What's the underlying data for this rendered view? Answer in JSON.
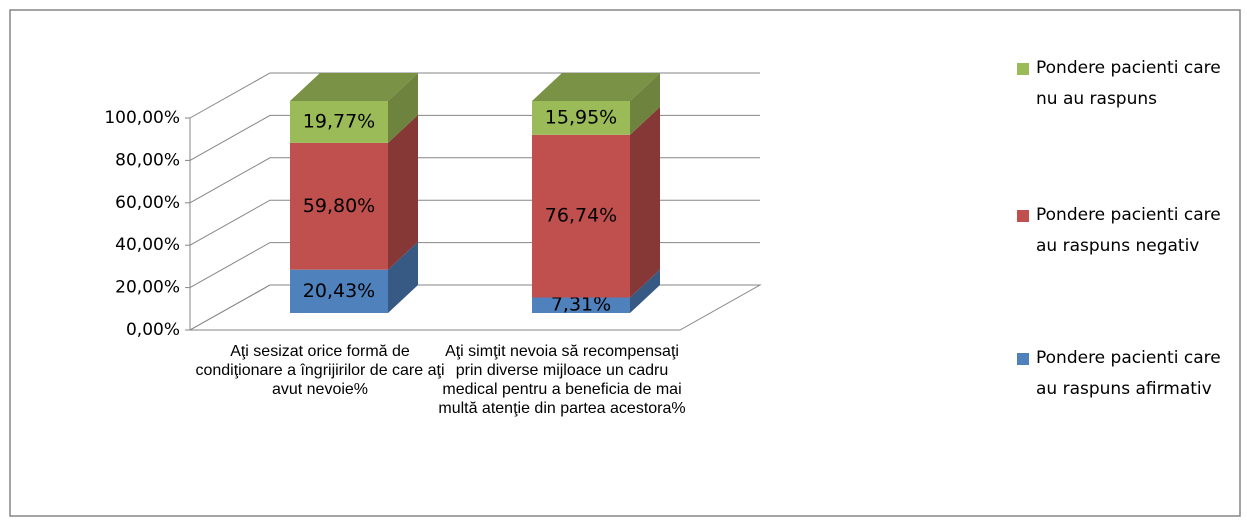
{
  "chart_data": {
    "type": "bar3d_stacked",
    "categories": [
      "Aţi sesizat orice formă de condiţionare a îngrijirilor de care aţi avut nevoie%",
      "Aţi simţit nevoia să recompensaţi prin diverse mijloace un cadru medical pentru a beneficia de mai multă atenţie din partea acestora%"
    ],
    "series": [
      {
        "name": "Pondere pacienti care au raspuns afirmativ",
        "color": "#4f81bd",
        "values": [
          20.43,
          7.31
        ],
        "value_labels": [
          "20,43%",
          "7,31%"
        ]
      },
      {
        "name": "Pondere pacienti care au raspuns negativ",
        "color": "#c0504d",
        "values": [
          59.8,
          76.74
        ],
        "value_labels": [
          "59,80%",
          "76,74%"
        ]
      },
      {
        "name": "Pondere pacienti care nu au raspuns",
        "color": "#9bbb59",
        "values": [
          19.77,
          15.95
        ],
        "value_labels": [
          "19,77%",
          "15,95%"
        ]
      }
    ],
    "ylim": [
      0,
      100
    ],
    "yticks": [
      {
        "value": 0,
        "label": "0,00%"
      },
      {
        "value": 20,
        "label": "20,00%"
      },
      {
        "value": 40,
        "label": "40,00%"
      },
      {
        "value": 60,
        "label": "60,00%"
      },
      {
        "value": 80,
        "label": "80,00%"
      },
      {
        "value": 100,
        "label": "100,00%"
      }
    ],
    "grid": true,
    "legend": "right"
  }
}
